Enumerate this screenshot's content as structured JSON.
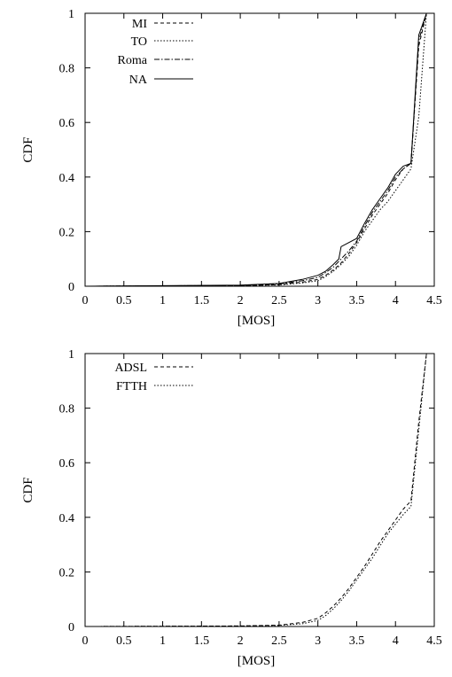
{
  "chart_data": [
    {
      "type": "line",
      "title": "",
      "xlabel": "[MOS]",
      "ylabel": "CDF",
      "xlim": [
        0,
        4.5
      ],
      "ylim": [
        0,
        1
      ],
      "xticks": [
        "0",
        "0.5",
        "1",
        "1.5",
        "2",
        "2.5",
        "3",
        "3.5",
        "4",
        "4.5"
      ],
      "yticks": [
        "0",
        "0.2",
        "0.4",
        "0.6",
        "0.8",
        "1"
      ],
      "legend_position": "top-left",
      "series": [
        {
          "name": "MI",
          "dash": "4,3",
          "x": [
            0,
            2.0,
            2.5,
            2.8,
            3.0,
            3.1,
            3.2,
            3.3,
            3.4,
            3.5,
            3.6,
            3.7,
            3.8,
            3.9,
            4.0,
            4.1,
            4.2,
            4.3,
            4.4
          ],
          "y": [
            0,
            0.002,
            0.006,
            0.015,
            0.025,
            0.04,
            0.06,
            0.085,
            0.12,
            0.16,
            0.21,
            0.26,
            0.3,
            0.34,
            0.39,
            0.43,
            0.45,
            0.88,
            1.0
          ]
        },
        {
          "name": "TO",
          "dash": "1.5,2",
          "x": [
            0,
            2.0,
            2.5,
            2.8,
            3.0,
            3.1,
            3.2,
            3.3,
            3.4,
            3.5,
            3.6,
            3.7,
            3.8,
            3.9,
            4.0,
            4.1,
            4.2,
            4.3,
            4.4
          ],
          "y": [
            0,
            0.002,
            0.005,
            0.012,
            0.02,
            0.035,
            0.055,
            0.08,
            0.11,
            0.15,
            0.2,
            0.24,
            0.28,
            0.31,
            0.35,
            0.39,
            0.43,
            0.62,
            1.0
          ]
        },
        {
          "name": "Roma",
          "dash": "6,2,1.5,2",
          "x": [
            0,
            2.0,
            2.5,
            2.8,
            3.0,
            3.1,
            3.2,
            3.3,
            3.4,
            3.5,
            3.6,
            3.7,
            3.8,
            3.9,
            4.0,
            4.1,
            4.2,
            4.3,
            4.4
          ],
          "y": [
            0,
            0.003,
            0.008,
            0.02,
            0.032,
            0.05,
            0.07,
            0.1,
            0.13,
            0.165,
            0.22,
            0.27,
            0.31,
            0.35,
            0.4,
            0.43,
            0.45,
            0.9,
            1.0
          ]
        },
        {
          "name": "NA",
          "dash": "",
          "x": [
            0,
            2.0,
            2.5,
            2.8,
            3.0,
            3.1,
            3.2,
            3.27,
            3.3,
            3.5,
            3.6,
            3.7,
            3.8,
            3.9,
            4.0,
            4.1,
            4.2,
            4.3,
            4.4
          ],
          "y": [
            0,
            0.004,
            0.01,
            0.025,
            0.04,
            0.055,
            0.08,
            0.1,
            0.145,
            0.175,
            0.23,
            0.28,
            0.32,
            0.36,
            0.41,
            0.44,
            0.45,
            0.92,
            1.0
          ]
        }
      ]
    },
    {
      "type": "line",
      "title": "",
      "xlabel": "[MOS]",
      "ylabel": "CDF",
      "xlim": [
        0,
        4.5
      ],
      "ylim": [
        0,
        1
      ],
      "xticks": [
        "0",
        "0.5",
        "1",
        "1.5",
        "2",
        "2.5",
        "3",
        "3.5",
        "4",
        "4.5"
      ],
      "yticks": [
        "0",
        "0.2",
        "0.4",
        "0.6",
        "0.8",
        "1"
      ],
      "legend_position": "top-left",
      "series": [
        {
          "name": "ADSL",
          "dash": "4,3",
          "x": [
            0,
            2.0,
            2.5,
            2.8,
            3.0,
            3.1,
            3.2,
            3.3,
            3.4,
            3.5,
            3.6,
            3.7,
            3.8,
            3.9,
            4.0,
            4.1,
            4.2,
            4.3,
            4.4
          ],
          "y": [
            0,
            0.002,
            0.005,
            0.015,
            0.03,
            0.05,
            0.075,
            0.105,
            0.14,
            0.18,
            0.22,
            0.265,
            0.31,
            0.35,
            0.39,
            0.43,
            0.46,
            0.75,
            1.0
          ]
        },
        {
          "name": "FTTH",
          "dash": "1.5,2",
          "x": [
            0,
            2.0,
            2.5,
            2.8,
            3.0,
            3.1,
            3.2,
            3.3,
            3.4,
            3.5,
            3.6,
            3.7,
            3.8,
            3.9,
            4.0,
            4.1,
            4.2,
            4.3,
            4.4
          ],
          "y": [
            0,
            0.002,
            0.004,
            0.01,
            0.022,
            0.04,
            0.065,
            0.095,
            0.13,
            0.17,
            0.21,
            0.25,
            0.295,
            0.34,
            0.375,
            0.41,
            0.44,
            0.72,
            1.0
          ]
        }
      ]
    }
  ]
}
